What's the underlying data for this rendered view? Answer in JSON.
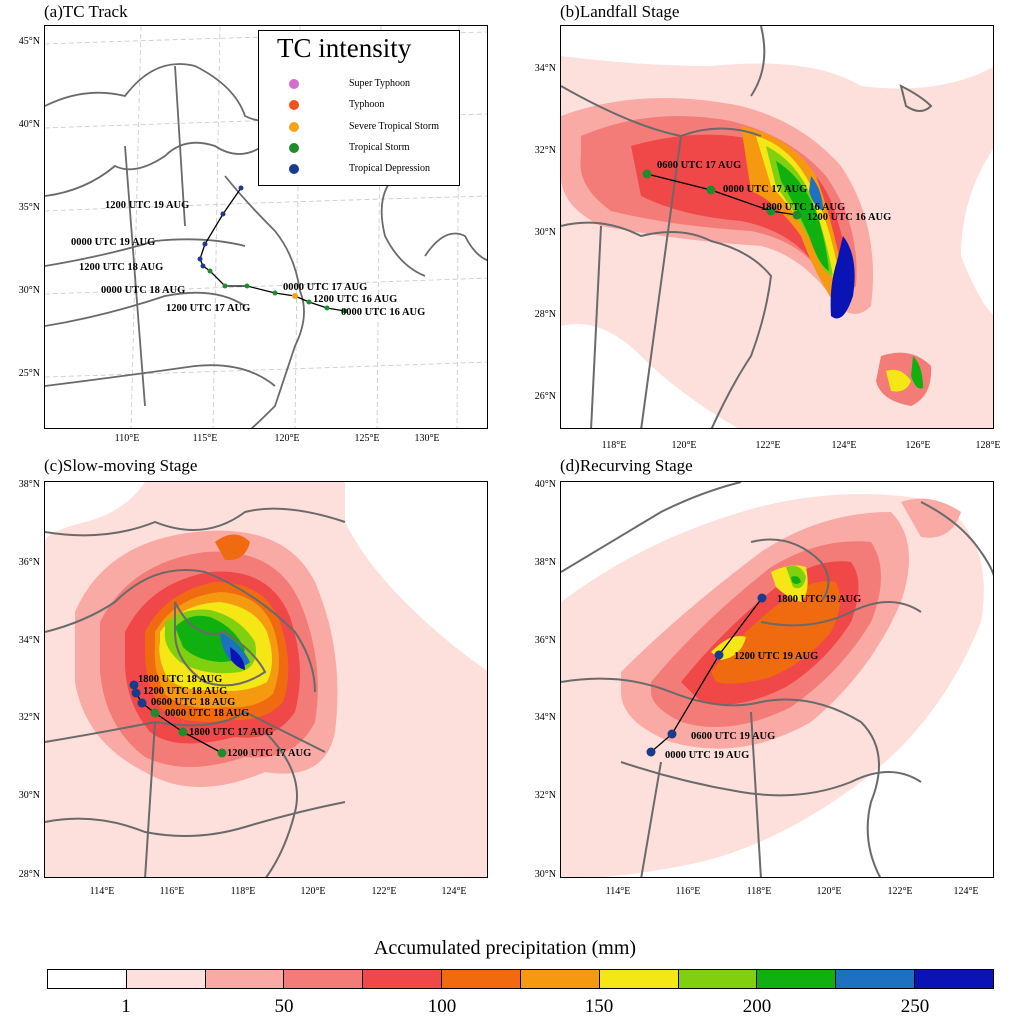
{
  "panels": {
    "a": {
      "title": "(a)TC Track",
      "yticks": [
        "45°N",
        "40°N",
        "35°N",
        "30°N",
        "25°N"
      ],
      "xticks": [
        "110°E",
        "115°E",
        "120°E",
        "125°E",
        "130°E"
      ],
      "track_labels": [
        "1200 UTC 19 AUG",
        "0000 UTC 19 AUG",
        "1200 UTC 18 AUG",
        "0000 UTC 18 AUG",
        "1200 UTC 17 AUG",
        "0000 UTC 17 AUG",
        "1200 UTC 16 AUG",
        "0000 UTC 16 AUG"
      ]
    },
    "b": {
      "title": "(b)Landfall Stage",
      "yticks": [
        "34°N",
        "32°N",
        "30°N",
        "28°N",
        "26°N"
      ],
      "xticks": [
        "118°E",
        "120°E",
        "122°E",
        "124°E",
        "126°E",
        "128°E"
      ],
      "track_labels": [
        "0600 UTC 17 AUG",
        "0000 UTC 17 AUG",
        "1800 UTC 16 AUG",
        "1200 UTC 16 AUG"
      ]
    },
    "c": {
      "title": "(c)Slow-moving Stage",
      "yticks": [
        "38°N",
        "36°N",
        "34°N",
        "32°N",
        "30°N",
        "28°N"
      ],
      "xticks": [
        "114°E",
        "116°E",
        "118°E",
        "120°E",
        "122°E",
        "124°E"
      ],
      "track_labels": [
        "1800 UTC 18 AUG",
        "1200 UTC 18 AUG",
        "0600 UTC 18 AUG",
        "0000 UTC 18 AUG",
        "1800 UTC 17 AUG",
        "1200 UTC 17 AUG"
      ]
    },
    "d": {
      "title": "(d)Recurving Stage",
      "yticks": [
        "40°N",
        "38°N",
        "36°N",
        "34°N",
        "32°N",
        "30°N"
      ],
      "xticks": [
        "114°E",
        "116°E",
        "118°E",
        "120°E",
        "122°E",
        "124°E"
      ],
      "track_labels": [
        "1800 UTC 19 AUG",
        "1200 UTC 19 AUG",
        "0600 UTC 19 AUG",
        "0000 UTC 19 AUG"
      ]
    }
  },
  "intensity_legend": {
    "title": "TC intensity",
    "items": [
      {
        "label": "Super Typhoon",
        "color": "#d46ec8"
      },
      {
        "label": "Typhoon",
        "color": "#f2521c"
      },
      {
        "label": "Severe Tropical Storm",
        "color": "#f5a31c"
      },
      {
        "label": "Tropical Storm",
        "color": "#1f8a2e"
      },
      {
        "label": "Tropical Depression",
        "color": "#1a3a8c"
      }
    ]
  },
  "colorbar": {
    "title": "Accumulated precipitation (mm)",
    "labels": [
      "1",
      "50",
      "100",
      "150",
      "200",
      "250"
    ],
    "colors": [
      "#ffffff",
      "#fde0dc",
      "#f9aaa4",
      "#f47c78",
      "#f04848",
      "#f06a10",
      "#f59a10",
      "#f5e616",
      "#80d010",
      "#10b010",
      "#1e70c0",
      "#0a14b4"
    ]
  }
}
